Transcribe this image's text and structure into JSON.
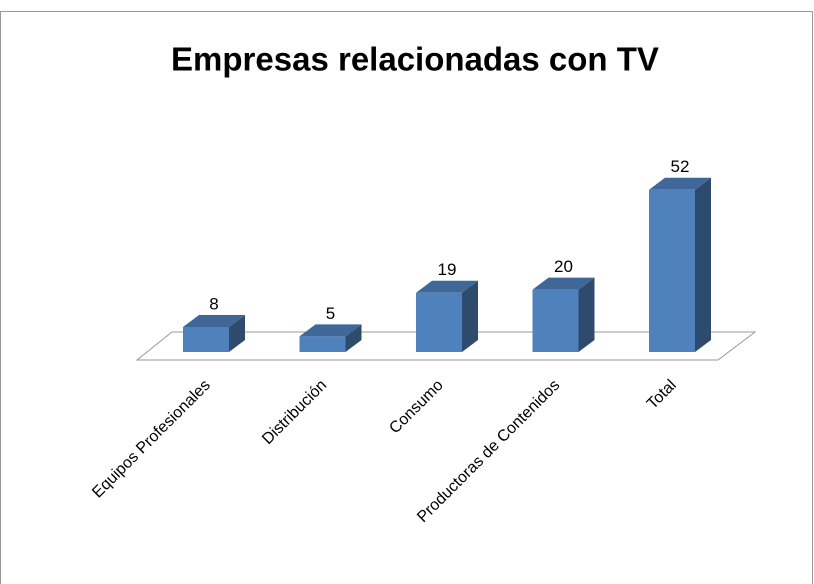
{
  "chart_data": {
    "type": "bar3d",
    "title": "Empresas relacionadas con TV",
    "categories": [
      "Equipos Profesionales",
      "Distribución",
      "Consumo",
      "Productoras de Contenidos",
      "Total"
    ],
    "values": [
      8,
      5,
      19,
      20,
      52
    ],
    "color": "#4f81bd"
  }
}
